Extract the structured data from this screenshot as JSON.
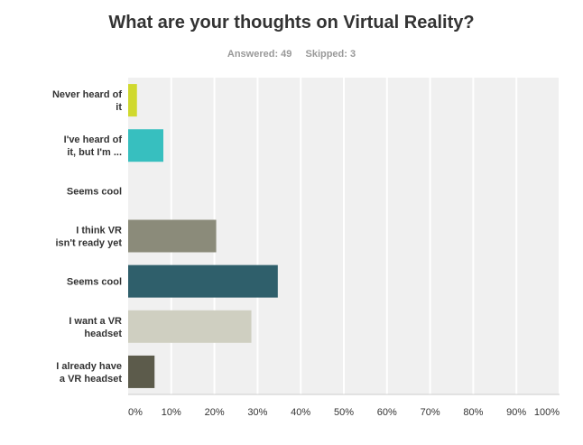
{
  "header": {
    "title": "What are your thoughts on Virtual Reality?",
    "answered": "Answered: 49",
    "skipped": "Skipped: 3"
  },
  "chart_data": {
    "type": "bar",
    "orientation": "horizontal",
    "categories": [
      [
        "Never heard of",
        "it"
      ],
      [
        "I've heard of",
        "it, but I'm ..."
      ],
      [
        "Seems cool"
      ],
      [
        "I think VR",
        "isn't ready yet"
      ],
      [
        "Seems cool"
      ],
      [
        "I want a VR",
        "headset"
      ],
      [
        "I already have",
        "a VR headset"
      ]
    ],
    "values": [
      2.04,
      8.16,
      0,
      20.41,
      34.69,
      28.57,
      6.12
    ],
    "colors": [
      "#d0d92e",
      "#37bfbf",
      "#aaaaaa",
      "#8b8b7a",
      "#2f5f6b",
      "#cfcfc1",
      "#5c5b4b"
    ],
    "xlim": [
      0,
      100
    ],
    "ticks": [
      "0%",
      "10%",
      "20%",
      "30%",
      "40%",
      "50%",
      "60%",
      "70%",
      "80%",
      "90%",
      "100%"
    ],
    "grid": true,
    "plot_background": "#f0f0f0"
  }
}
